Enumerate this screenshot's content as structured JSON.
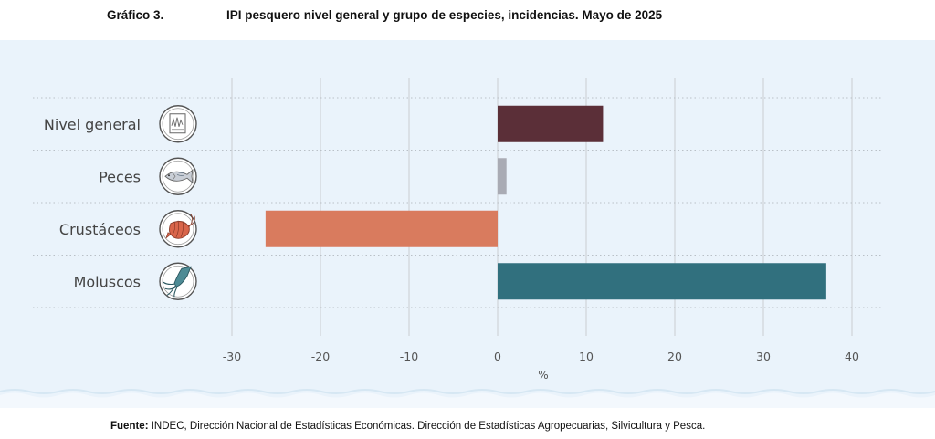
{
  "header": {
    "figure_number": "Gráfico 3.",
    "title": "IPI pesquero nivel general y grupo de especies, incidencias. Mayo de 2025"
  },
  "footer": {
    "source_label": "Fuente:",
    "source_text": "INDEC, Dirección Nacional de Estadísticas Económicas. Dirección de Estadísticas Agropecuarias, Silvicultura y Pesca."
  },
  "chart_data": {
    "type": "bar",
    "orientation": "horizontal",
    "title": "IPI pesquero nivel general y grupo de especies, incidencias. Mayo de 2025",
    "xlabel": "%",
    "ylabel": "",
    "xlim": [
      -30,
      40
    ],
    "xticks": [
      -30,
      -20,
      -10,
      0,
      10,
      20,
      30,
      40
    ],
    "grid": true,
    "categories": [
      "Nivel general",
      "Peces",
      "Crustáceos",
      "Moluscos"
    ],
    "values": [
      11.9,
      1.0,
      -26.2,
      37.1
    ],
    "colors": [
      "#5b2f38",
      "#a9abb4",
      "#d97b5e",
      "#31707e"
    ],
    "icons": [
      "graph-report-icon",
      "fish-icon",
      "shrimp-icon",
      "squid-icon"
    ]
  }
}
